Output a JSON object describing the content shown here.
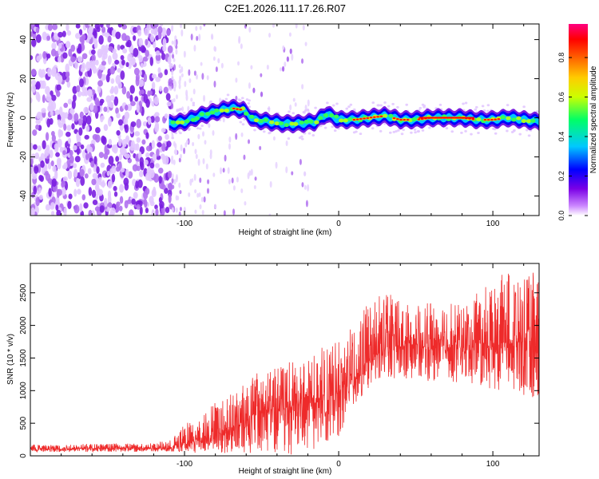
{
  "title": "C2E1.2026.111.17.26.R07",
  "chart_data": [
    {
      "type": "heatmap",
      "title": "C2E1.2026.111.17.26.R07",
      "xlabel": "Height of straight line (km)",
      "ylabel": "Frequency (Hz)",
      "xlim": [
        -200,
        130
      ],
      "ylim": [
        -50,
        48
      ],
      "xticks": [
        -100,
        0,
        100
      ],
      "xtick_labels": [
        "-100",
        "0",
        "100"
      ],
      "yticks": [
        -40,
        -20,
        0,
        20,
        40
      ],
      "ytick_labels": [
        "-40",
        "-20",
        "0",
        "20",
        "40"
      ],
      "colorbar": {
        "label": "Normalized spectral amplitude",
        "range": [
          0,
          0.97
        ],
        "ticks": [
          0.0,
          0.2,
          0.4,
          0.6,
          0.8
        ],
        "tick_labels": [
          "0.0",
          "0.2",
          "0.4",
          "0.6",
          "0.8"
        ],
        "colormap": [
          "#ffffff",
          "#cc88ff",
          "#7a00e6",
          "#0000ff",
          "#00c8ff",
          "#00ff66",
          "#ccff00",
          "#ffcc00",
          "#ff6600",
          "#ff0000",
          "#ff0080"
        ]
      },
      "signal_band_centre_hz": {
        "x_km": [
          -110,
          -100,
          -90,
          -80,
          -70,
          -62,
          -55,
          -45,
          -35,
          -25,
          -15,
          -8,
          0,
          10,
          20,
          30,
          40,
          50,
          60,
          70,
          80,
          90,
          100,
          110,
          120,
          130
        ],
        "freq_hz": [
          -3,
          -2,
          1,
          3,
          5,
          4,
          -1,
          -2,
          -3,
          -3,
          -2,
          2,
          -1,
          -1,
          0,
          1,
          -1,
          -1,
          0,
          0,
          0,
          -1,
          -1,
          0,
          -1,
          -2
        ]
      },
      "noise_region_km": [
        -200,
        -108
      ]
    },
    {
      "type": "line",
      "xlabel": "Height of straight line (km)",
      "ylabel": "SNR (10 * v/v)",
      "xlim": [
        -200,
        130
      ],
      "ylim": [
        0,
        2950
      ],
      "xticks": [
        -100,
        0,
        100
      ],
      "xtick_labels": [
        "-100",
        "0",
        "100"
      ],
      "yticks": [
        0,
        500,
        1000,
        1500,
        2000,
        2500
      ],
      "ytick_labels": [
        "0",
        "500",
        "1000",
        "1500",
        "2000",
        "2500"
      ],
      "series": [
        {
          "name": "SNR",
          "color": "#ee2a2a",
          "envelope": {
            "x_km": [
              -200,
              -180,
              -150,
              -125,
              -110,
              -100,
              -90,
              -80,
              -70,
              -60,
              -50,
              -40,
              -30,
              -20,
              -10,
              0,
              10,
              20,
              30,
              40,
              50,
              60,
              70,
              80,
              90,
              100,
              110,
              120,
              130
            ],
            "mean": [
              110,
              110,
              115,
              115,
              120,
              200,
              250,
              320,
              420,
              560,
              700,
              720,
              760,
              800,
              850,
              1000,
              1200,
              1450,
              1650,
              1700,
              1700,
              1650,
              1700,
              1650,
              1700,
              1700,
              1750,
              1750,
              1800
            ],
            "max": [
              180,
              180,
              190,
              190,
              230,
              500,
              600,
              850,
              1000,
              1200,
              1300,
              1350,
              1500,
              1450,
              1700,
              1800,
              2000,
              2400,
              2600,
              2500,
              2300,
              2350,
              2400,
              2300,
              2500,
              2700,
              2850,
              2700,
              2950
            ],
            "min": [
              60,
              60,
              60,
              60,
              70,
              50,
              40,
              30,
              30,
              20,
              10,
              10,
              20,
              30,
              200,
              300,
              800,
              1000,
              1200,
              1150,
              1200,
              1100,
              1150,
              1100,
              1100,
              1000,
              1000,
              900,
              900
            ]
          }
        }
      ]
    }
  ]
}
